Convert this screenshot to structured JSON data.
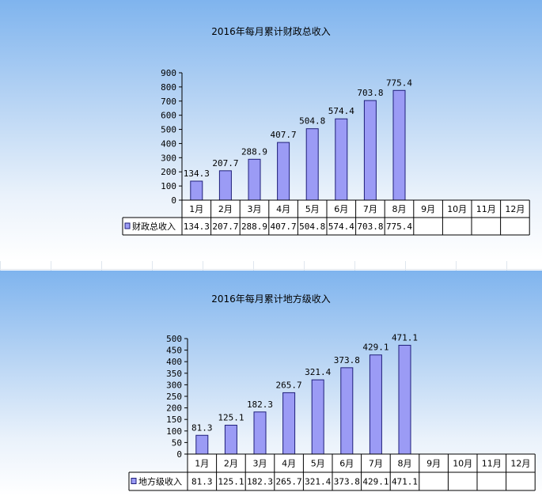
{
  "chart_data": [
    {
      "type": "bar",
      "title": "2016年每月累计财政总收入",
      "categories": [
        "1月",
        "2月",
        "3月",
        "4月",
        "5月",
        "6月",
        "7月",
        "8月",
        "9月",
        "10月",
        "11月",
        "12月"
      ],
      "series": [
        {
          "name": "财政总收入",
          "values": [
            134.3,
            207.7,
            288.9,
            407.7,
            504.8,
            574.4,
            703.8,
            775.4,
            null,
            null,
            null,
            null
          ]
        }
      ],
      "ylim": [
        0,
        900
      ],
      "yticks": [
        0,
        100,
        200,
        300,
        400,
        500,
        600,
        700,
        800,
        900
      ],
      "data_labels": true,
      "data_table": true,
      "legend": "data-table"
    },
    {
      "type": "bar",
      "title": "2016年每月累计地方级收入",
      "categories": [
        "1月",
        "2月",
        "3月",
        "4月",
        "5月",
        "6月",
        "7月",
        "8月",
        "9月",
        "10月",
        "11月",
        "12月"
      ],
      "series": [
        {
          "name": "地方级收入",
          "values": [
            81.3,
            125.1,
            182.3,
            265.7,
            321.4,
            373.8,
            429.1,
            471.1,
            null,
            null,
            null,
            null
          ]
        }
      ],
      "ylim": [
        0,
        500
      ],
      "yticks": [
        0,
        50,
        100,
        150,
        200,
        250,
        300,
        350,
        400,
        450,
        500
      ],
      "data_labels": true,
      "data_table": true,
      "legend": "data-table"
    }
  ],
  "colors": {
    "bar_fill": "#9b9bf5",
    "bar_stroke": "#1f1f7a",
    "axis": "#000000",
    "table_bg": "#ffffff"
  }
}
